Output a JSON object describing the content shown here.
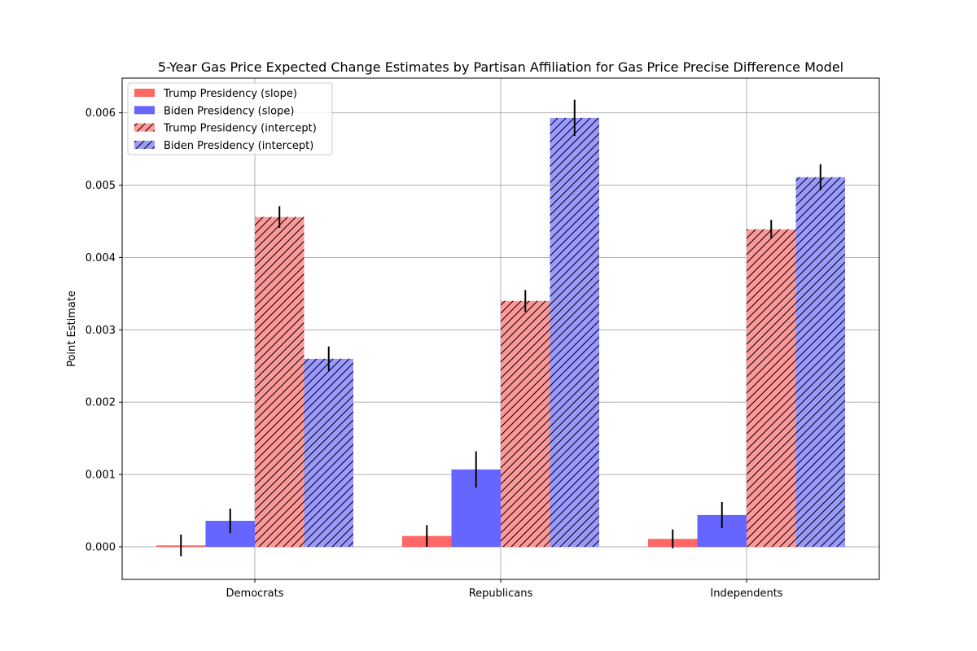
{
  "chart_data": {
    "type": "bar",
    "title": "5-Year Gas Price Expected Change Estimates by Partisan Affiliation for Gas Price Precise Difference Model",
    "xlabel": "",
    "ylabel": "Point Estimate",
    "ylim": [
      -0.00045,
      0.00648
    ],
    "yticks": [
      0.0,
      0.001,
      0.002,
      0.003,
      0.004,
      0.005,
      0.006
    ],
    "ytick_labels": [
      "0.000",
      "0.001",
      "0.002",
      "0.003",
      "0.004",
      "0.005",
      "0.006"
    ],
    "grid": true,
    "legend_position": "top-left",
    "categories": [
      "Democrats",
      "Republicans",
      "Independents"
    ],
    "series": [
      {
        "name": "Trump Presidency (slope)",
        "color": "#ff6666",
        "hatch": false,
        "values": [
          2e-05,
          0.00015,
          0.00011
        ],
        "errors": [
          0.00015,
          0.00015,
          0.00013
        ]
      },
      {
        "name": "Biden Presidency (slope)",
        "color": "#6666ff",
        "hatch": false,
        "values": [
          0.00036,
          0.00107,
          0.00044
        ],
        "errors": [
          0.00017,
          0.00025,
          0.00018
        ]
      },
      {
        "name": "Trump Presidency (intercept)",
        "color": "#ff9999",
        "hatch": true,
        "values": [
          0.00456,
          0.0034,
          0.00439
        ],
        "errors": [
          0.00015,
          0.00015,
          0.00013
        ]
      },
      {
        "name": "Biden Presidency (intercept)",
        "color": "#9999ff",
        "hatch": true,
        "values": [
          0.0026,
          0.00593,
          0.00511
        ],
        "errors": [
          0.00017,
          0.00025,
          0.00018
        ]
      }
    ]
  }
}
